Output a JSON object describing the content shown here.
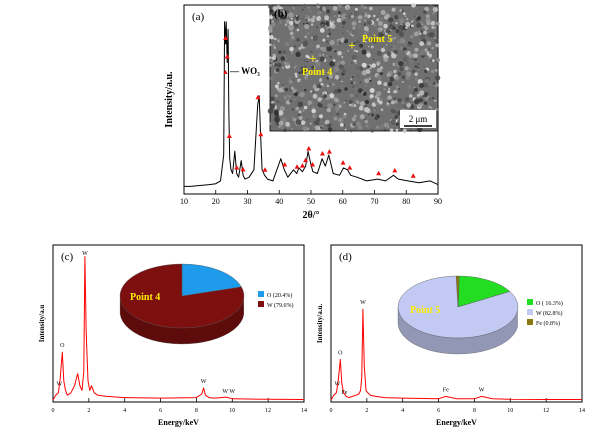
{
  "chart_data": [
    {
      "id": "a",
      "type": "line",
      "panel_label": "(a)",
      "xlabel": "2θ/°",
      "ylabel": "Intensity/a.u.",
      "xlim": [
        10,
        90
      ],
      "xticks": [
        10,
        20,
        30,
        40,
        50,
        60,
        70,
        80,
        90
      ],
      "legend": {
        "marker": "▲",
        "label": "— WO₃",
        "position": "left"
      },
      "series": [
        {
          "color": "#000000",
          "x": [
            10,
            12,
            15,
            18,
            20,
            21.5,
            22.5,
            22.8,
            23.1,
            23.3,
            23.6,
            23.9,
            24.1,
            24.4,
            24.8,
            25.3,
            26.0,
            26.6,
            27.2,
            28.0,
            28.6,
            29.2,
            30.5,
            32.0,
            33.2,
            33.7,
            34.1,
            34.6,
            35.4,
            36.3,
            38.0,
            40.5,
            41.6,
            42.7,
            44.5,
            45.5,
            46.2,
            47.3,
            48.3,
            49.1,
            49.8,
            50.6,
            52.0,
            53.5,
            54.5,
            55.6,
            57.0,
            59.0,
            60.2,
            61.5,
            62.5,
            64.5,
            67.5,
            71.0,
            73.5,
            76.0,
            77.5,
            80.5,
            84.0,
            87.5,
            90
          ],
          "y": [
            3,
            3,
            3.5,
            4,
            4.5,
            6,
            20,
            92,
            80,
            92,
            70,
            88,
            45,
            18,
            12,
            10,
            22,
            10,
            8,
            17,
            9,
            7,
            8,
            12,
            47,
            52,
            32,
            12,
            9,
            7,
            6,
            18,
            12,
            8,
            12,
            10,
            13,
            11,
            14,
            22,
            16,
            11,
            10,
            18,
            14,
            20,
            10,
            9,
            13,
            12,
            9,
            8,
            6,
            7,
            6,
            9,
            7,
            6,
            5,
            6,
            4
          ]
        }
      ],
      "markers_x": [
        23.1,
        23.6,
        24.3,
        26.6,
        28.6,
        33.3,
        34.2,
        35.5,
        41.7,
        45.6,
        47.3,
        48.3,
        49.3,
        50.5,
        53.6,
        55.8,
        60.1,
        62.2,
        71.3,
        76.4,
        82.2
      ],
      "inset": {
        "label": "(b)",
        "points": [
          "Point 5",
          "Point 4"
        ],
        "scale_bar": "2 μm"
      }
    },
    {
      "id": "c",
      "type": "line",
      "panel_label": "(c)",
      "xlabel": "Energy/keV",
      "ylabel": "Intensity/a.u",
      "xlim": [
        0,
        14
      ],
      "xticks": [
        0,
        2,
        4,
        6,
        8,
        10,
        12,
        14
      ],
      "series": [
        {
          "color": "#ff0000",
          "x": [
            0,
            0.15,
            0.3,
            0.4,
            0.52,
            0.6,
            0.7,
            0.8,
            1.0,
            1.2,
            1.38,
            1.5,
            1.62,
            1.72,
            1.78,
            1.85,
            1.95,
            2.05,
            2.15,
            2.3,
            2.5,
            3.0,
            4.0,
            6.0,
            8.0,
            8.3,
            8.4,
            8.5,
            8.7,
            9.0,
            9.67,
            10.0,
            12.0,
            14.0
          ],
          "y": [
            0,
            2,
            3,
            9,
            20,
            8,
            4,
            2,
            3,
            6,
            11,
            6,
            4,
            12,
            60,
            28,
            8,
            4,
            6,
            3,
            2,
            1.5,
            1,
            0.8,
            1,
            2.5,
            5,
            2,
            1,
            0.8,
            1.2,
            0.5,
            0.3,
            0.2
          ]
        }
      ],
      "peak_labels": [
        {
          "text": "O",
          "x": 0.52
        },
        {
          "text": "W",
          "x": 0.35
        },
        {
          "text": "W",
          "x": 1.78
        },
        {
          "text": "W",
          "x": 8.4
        },
        {
          "text": "W W",
          "x": 9.8
        }
      ],
      "pie": {
        "title": "Point 4",
        "slices": [
          {
            "label": "O (20.4%)",
            "value": 20.4,
            "color": "#1f9bec"
          },
          {
            "label": "W (79.6%)",
            "value": 79.6,
            "color": "#7d0f0f"
          }
        ]
      }
    },
    {
      "id": "d",
      "type": "line",
      "panel_label": "(d)",
      "xlabel": "Energy/keV",
      "ylabel": "Intensity/a.u.",
      "xlim": [
        0,
        14
      ],
      "xticks": [
        0,
        2,
        4,
        6,
        8,
        10,
        12,
        14
      ],
      "series": [
        {
          "color": "#ff0000",
          "x": [
            0,
            0.15,
            0.3,
            0.4,
            0.52,
            0.6,
            0.7,
            0.85,
            1.0,
            1.2,
            1.4,
            1.55,
            1.65,
            1.72,
            1.78,
            1.86,
            1.95,
            2.05,
            2.2,
            2.5,
            3.0,
            4.0,
            6.0,
            6.4,
            7.0,
            8.0,
            8.4,
            9.0,
            10.0,
            12.0,
            14.0
          ],
          "y": [
            0,
            2,
            3,
            8,
            17,
            7,
            3,
            1.5,
            1,
            1.5,
            2,
            2.5,
            4,
            10,
            38,
            14,
            4,
            3,
            2,
            1.5,
            1,
            0.8,
            0.5,
            1.5,
            0.5,
            0.5,
            1.5,
            0.5,
            0.3,
            0.2,
            0.2
          ]
        }
      ],
      "peak_labels": [
        {
          "text": "O",
          "x": 0.52
        },
        {
          "text": "W",
          "x": 0.35
        },
        {
          "text": "W",
          "x": 1.78
        },
        {
          "text": "Fe",
          "x": 0.75
        },
        {
          "text": "Fe",
          "x": 6.4
        },
        {
          "text": "W",
          "x": 8.4
        }
      ],
      "pie": {
        "title": "Point 5",
        "slices": [
          {
            "label": "O ( 16.3%)",
            "value": 16.3,
            "color": "#22dd22"
          },
          {
            "label": "W (82.8%)",
            "value": 82.8,
            "color": "#c2c9f3"
          },
          {
            "label": "Fe (0.8%)",
            "value": 0.8,
            "color": "#8a7a10"
          }
        ]
      }
    }
  ]
}
